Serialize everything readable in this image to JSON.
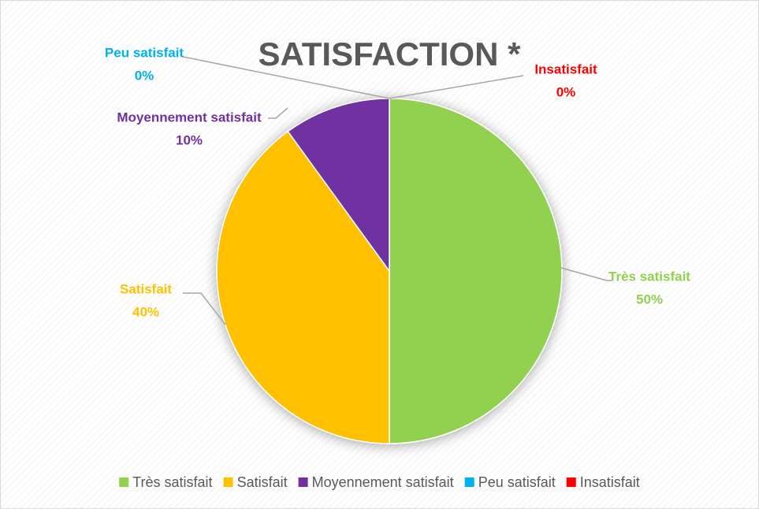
{
  "chart_data": {
    "type": "pie",
    "title": "SATISFACTION *",
    "categories": [
      "Très satisfait",
      "Satisfait",
      "Moyennement satisfait",
      "Peu satisfait",
      "Insatisfait"
    ],
    "values": [
      50,
      40,
      10,
      0,
      0
    ],
    "value_labels": [
      "50%",
      "40%",
      "10%",
      "0%",
      "0%"
    ],
    "colors": [
      "#92d050",
      "#ffc000",
      "#7030a0",
      "#00b0f0",
      "#ff0000"
    ],
    "legend": "bottom"
  }
}
